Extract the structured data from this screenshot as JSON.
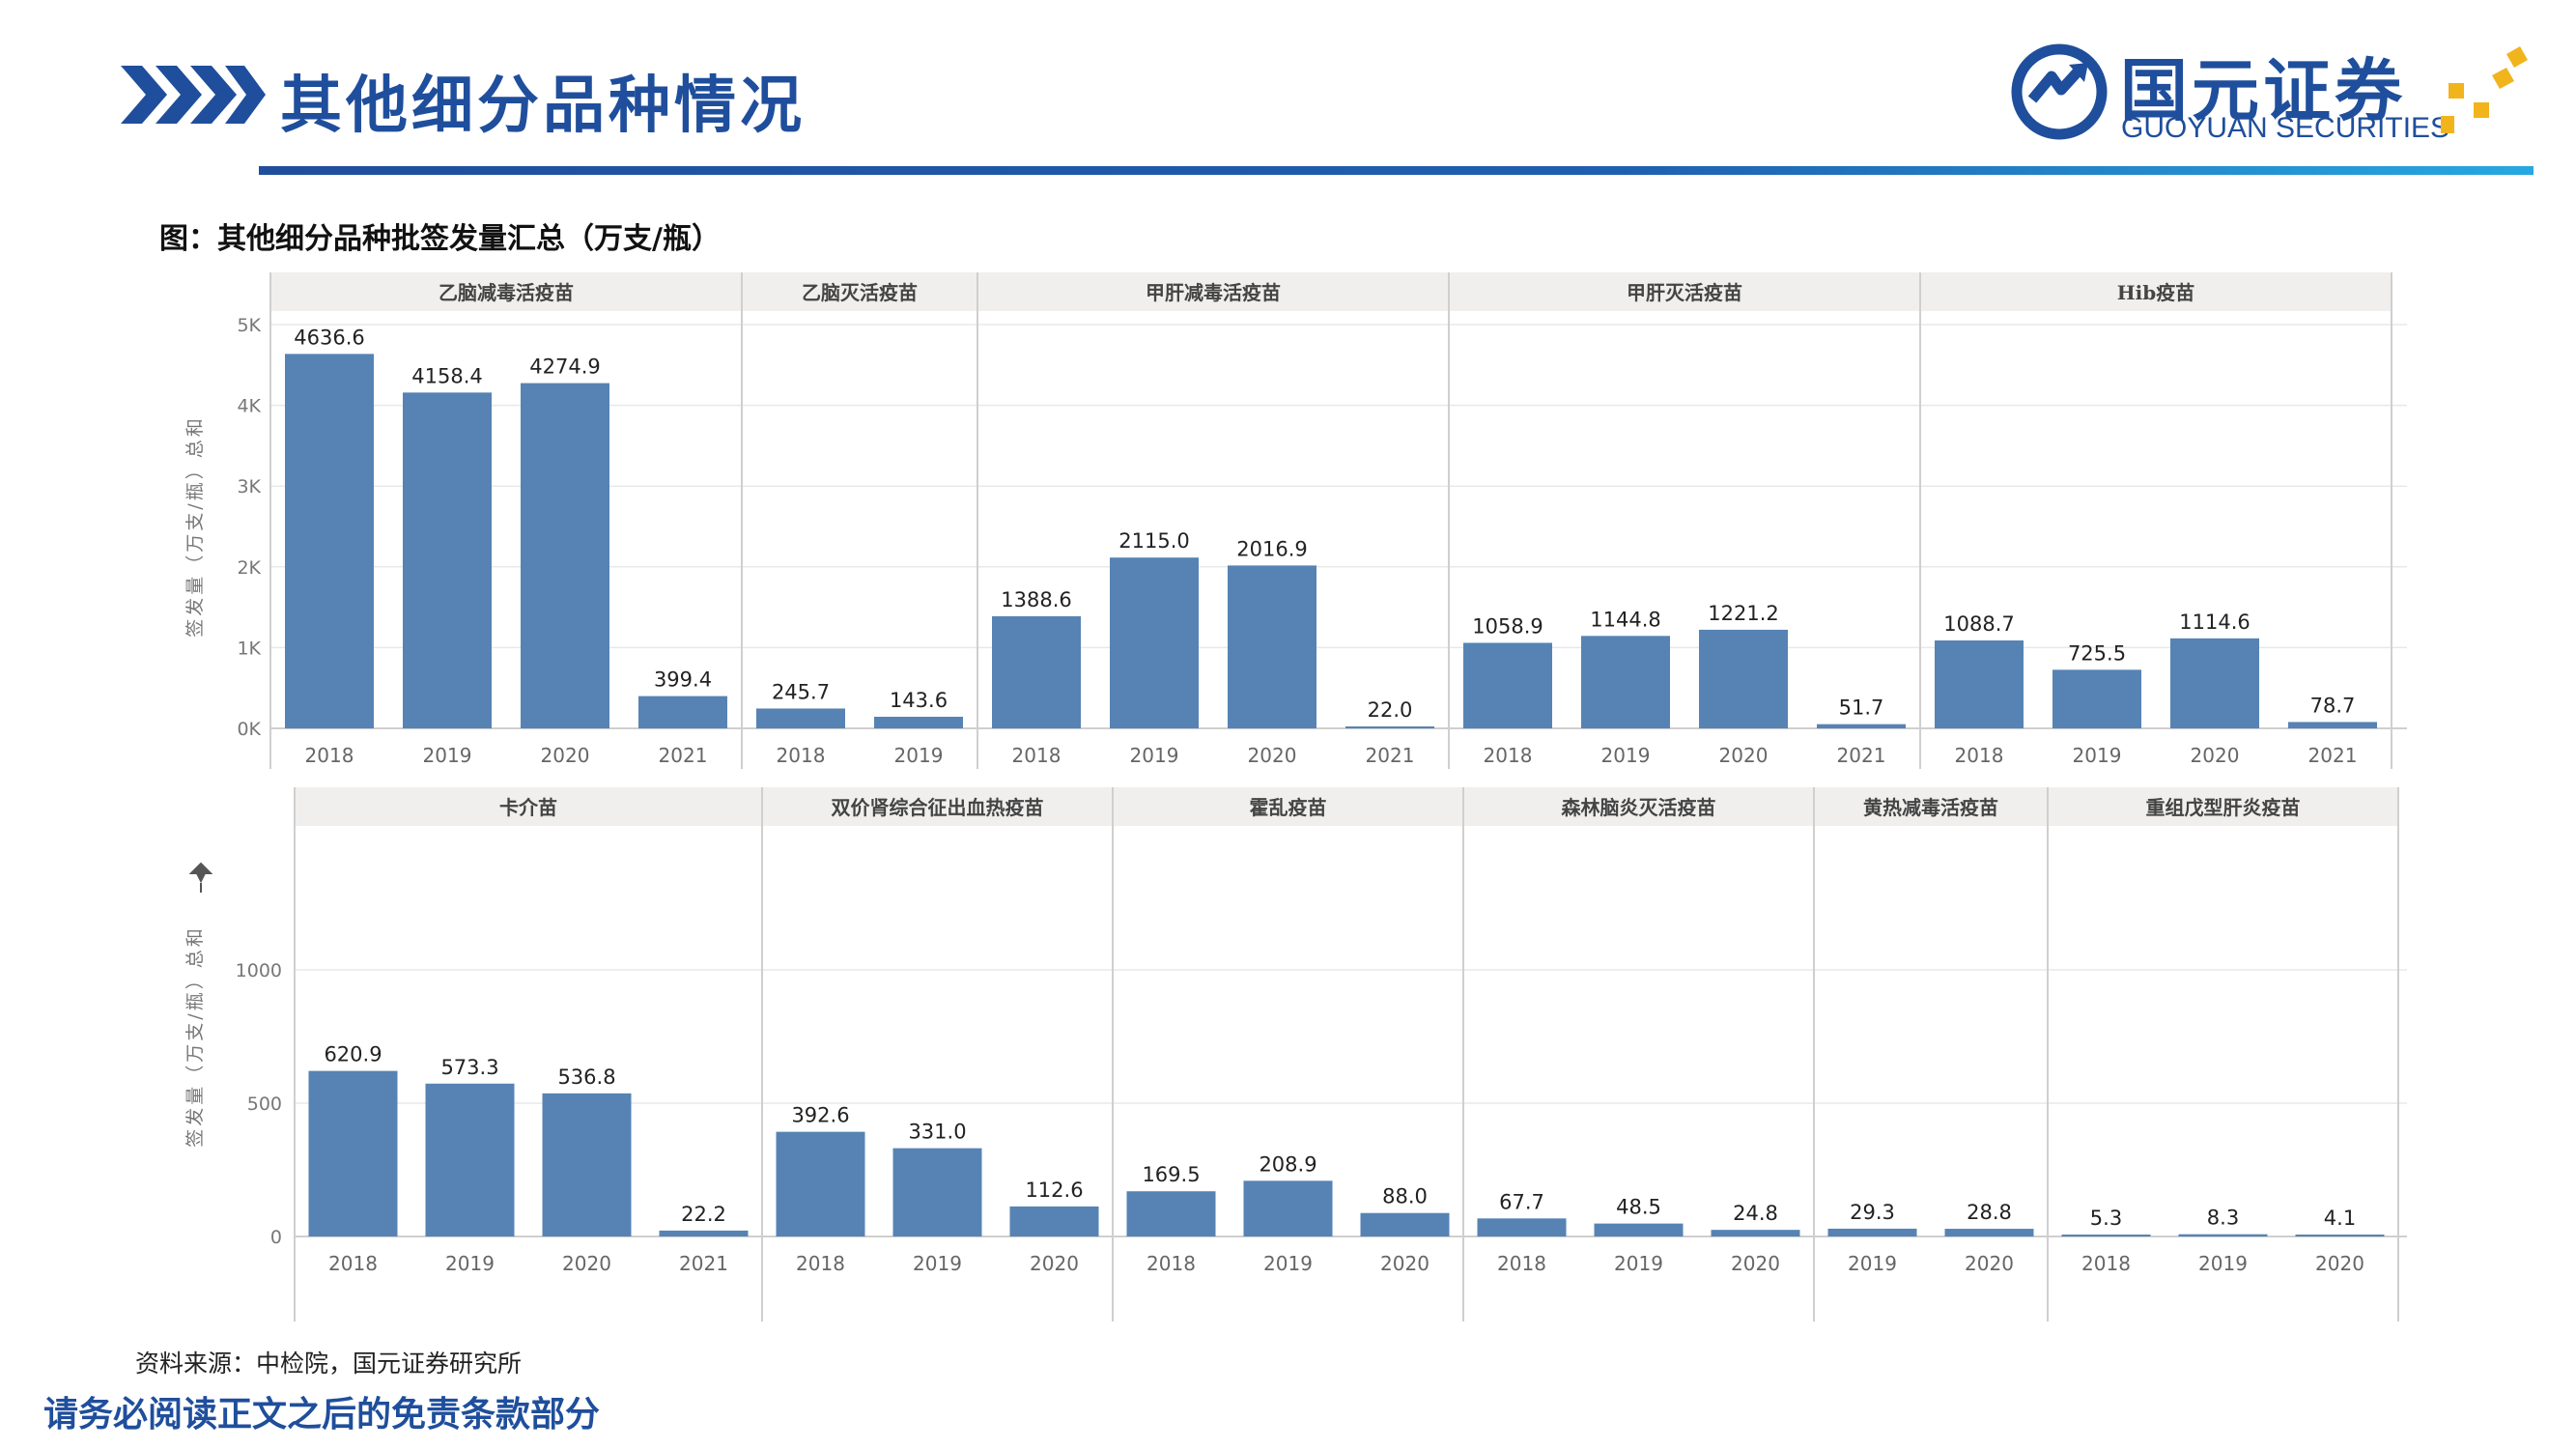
{
  "header": {
    "title": "其他细分品种情况",
    "logo_cn": "国元证券",
    "logo_en": "GUOYUAN SECURITIES"
  },
  "figure": {
    "caption": "图：其他细分品种批签发量汇总（万支/瓶）"
  },
  "footer": {
    "source": "资料来源：中检院，国元证券研究所",
    "disclaimer": "请务必阅读正文之后的免责条款部分"
  },
  "colors": {
    "brand_blue": "#1f4e9c",
    "accent_gold": "#f2b41c",
    "bar": "#5683b4",
    "panel_header_bg": "#f0efee"
  },
  "icons": {
    "header": "chevron-arrows-icon",
    "logo": "guoyuan-logo-icon",
    "pin": "pin-icon"
  },
  "chart_data": [
    {
      "type": "bar",
      "ylabel": "签发量（万支/瓶）总和",
      "ytick_labels": [
        "0K",
        "1K",
        "2K",
        "3K",
        "4K",
        "5K"
      ],
      "ylim": [
        0,
        5000
      ],
      "grid": true,
      "panels": [
        {
          "name": "乙脑减毒活疫苗",
          "categories": [
            "2018",
            "2019",
            "2020",
            "2021"
          ],
          "values": [
            4636.6,
            4158.4,
            4274.9,
            399.4
          ],
          "labels": [
            "4636.6",
            "4158.4",
            "4274.9",
            "399.4"
          ]
        },
        {
          "name": "乙脑灭活疫苗",
          "categories": [
            "2018",
            "2019"
          ],
          "values": [
            245.7,
            143.6
          ],
          "labels": [
            "245.7",
            "143.6"
          ]
        },
        {
          "name": "甲肝减毒活疫苗",
          "categories": [
            "2018",
            "2019",
            "2020",
            "2021"
          ],
          "values": [
            1388.6,
            2115.0,
            2016.9,
            22.0
          ],
          "labels": [
            "1388.6",
            "2115.0",
            "2016.9",
            "22.0"
          ]
        },
        {
          "name": "甲肝灭活疫苗",
          "categories": [
            "2018",
            "2019",
            "2020",
            "2021"
          ],
          "values": [
            1058.9,
            1144.8,
            1221.2,
            51.7
          ],
          "labels": [
            "1058.9",
            "1144.8",
            "1221.2",
            "51.7"
          ]
        },
        {
          "name": "Hib疫苗",
          "categories": [
            "2018",
            "2019",
            "2020",
            "2021"
          ],
          "values": [
            1088.7,
            725.5,
            1114.6,
            78.7
          ],
          "labels": [
            "1088.7",
            "725.5",
            "1114.6",
            "78.7"
          ]
        }
      ]
    },
    {
      "type": "bar",
      "ylabel": "签发量（万支/瓶）总和",
      "ytick_labels": [
        "0",
        "500",
        "1000"
      ],
      "ylim": [
        0,
        1500
      ],
      "grid": true,
      "panels": [
        {
          "name": "卡介苗",
          "categories": [
            "2018",
            "2019",
            "2020",
            "2021"
          ],
          "values": [
            620.9,
            573.3,
            536.8,
            22.2
          ],
          "labels": [
            "620.9",
            "573.3",
            "536.8",
            "22.2"
          ]
        },
        {
          "name": "双价肾综合征出血热疫苗",
          "categories": [
            "2018",
            "2019",
            "2020"
          ],
          "values": [
            392.6,
            331.0,
            112.6
          ],
          "labels": [
            "392.6",
            "331.0",
            "112.6"
          ]
        },
        {
          "name": "霍乱疫苗",
          "categories": [
            "2018",
            "2019",
            "2020"
          ],
          "values": [
            169.5,
            208.9,
            88.0
          ],
          "labels": [
            "169.5",
            "208.9",
            "88.0"
          ]
        },
        {
          "name": "森林脑炎灭活疫苗",
          "categories": [
            "2018",
            "2019",
            "2020"
          ],
          "values": [
            67.7,
            48.5,
            24.8
          ],
          "labels": [
            "67.7",
            "48.5",
            "24.8"
          ]
        },
        {
          "name": "黄热减毒活疫苗",
          "categories": [
            "2019",
            "2020"
          ],
          "values": [
            29.3,
            28.8
          ],
          "labels": [
            "29.3",
            "28.8"
          ]
        },
        {
          "name": "重组戊型肝炎疫苗",
          "categories": [
            "2018",
            "2019",
            "2020"
          ],
          "values": [
            5.3,
            8.3,
            4.1
          ],
          "labels": [
            "5.3",
            "8.3",
            "4.1"
          ]
        }
      ]
    }
  ]
}
